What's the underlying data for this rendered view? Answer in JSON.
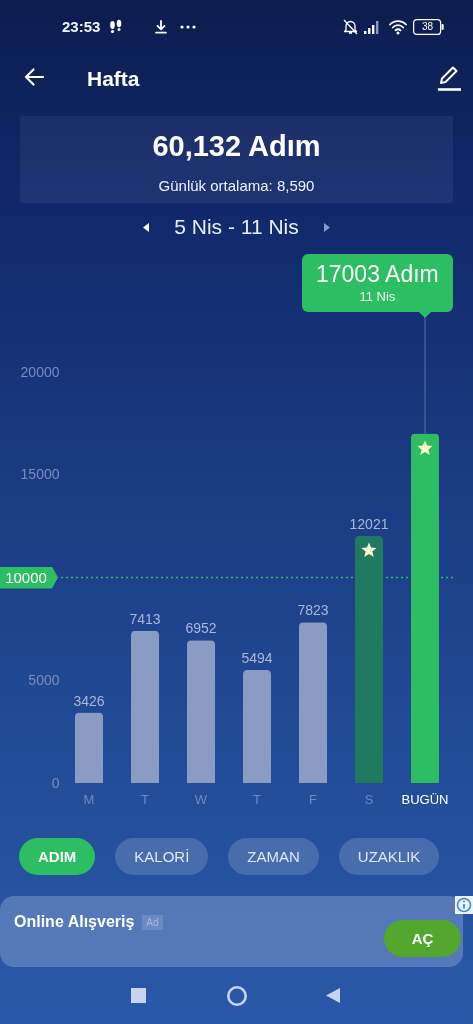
{
  "chart_data": {
    "type": "bar",
    "title": "Hafta",
    "subtitle": "60,132 Adım",
    "categories": [
      "M",
      "T",
      "W",
      "T",
      "F",
      "S",
      "BUGÜN"
    ],
    "values": [
      3426,
      7413,
      6952,
      5494,
      7823,
      12021,
      17003
    ],
    "colors": [
      "#8b9cc4",
      "#8b9cc4",
      "#8b9cc4",
      "#8b9cc4",
      "#8b9cc4",
      "#1f7a5f",
      "#2dbe63"
    ],
    "value_labels": [
      "3426",
      "7413",
      "6952",
      "5494",
      "7823",
      "12021",
      null
    ],
    "ylim": [
      0,
      20000
    ],
    "yticks": [
      0,
      5000,
      15000,
      20000
    ],
    "ref_lines": [
      {
        "axis": "y",
        "value": 10000,
        "label": "10000",
        "color": "#2dbe63",
        "line_style": "dotted"
      }
    ],
    "annotations": [
      "23:53",
      "38",
      "Günlük ortalama: 8,590",
      "5 Nis - 11 Nis",
      {
        "text": "17003 Adım",
        "x": "BUGÜN",
        "y": 17003
      },
      "11 Nis",
      "ADIM",
      "KALORİ",
      "ZAMAN",
      "UZAKLIK",
      "Online Alışveriş",
      "Ad",
      "AÇ"
    ]
  }
}
